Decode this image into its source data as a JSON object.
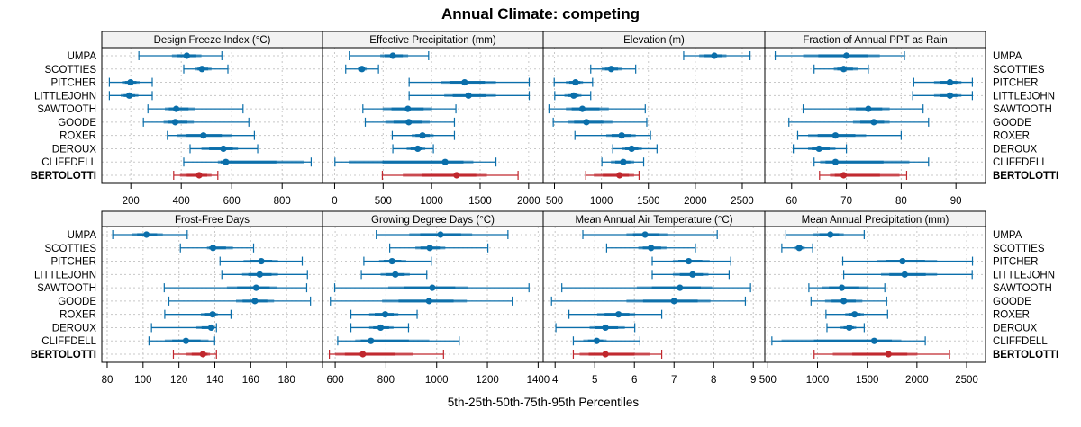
{
  "chart_data": {
    "type": "dotplot-intervals",
    "title": "Annual Climate: competing",
    "xlabel": "5th-25th-50th-75th-95th Percentiles",
    "percentiles": [
      "5th",
      "25th",
      "50th",
      "75th",
      "95th"
    ],
    "sites": [
      "UMPA",
      "SCOTTIES",
      "PITCHER",
      "LITTLEJOHN",
      "SAWTOOTH",
      "GOODE",
      "ROXER",
      "DEROUX",
      "CLIFFDELL",
      "BERTOLOTTI"
    ],
    "highlight_site": "BERTOLOTTI",
    "colors": {
      "competing": "#0a6eaa",
      "highlight": "#c0272d",
      "strip_bg": "#f2f2f2",
      "grid": "#c8c8c8"
    },
    "grid": true,
    "panels": [
      {
        "name": "Design Freeze Index (°C)",
        "xlim": [
          85,
          960
        ],
        "ticks": [
          200,
          400,
          600,
          800
        ],
        "values": {
          "UMPA": [
            232,
            363,
            422,
            480,
            561
          ],
          "SCOTTIES": [
            410,
            455,
            482,
            520,
            585
          ],
          "PITCHER": [
            115,
            165,
            199,
            235,
            285
          ],
          "LITTLEJOHN": [
            115,
            160,
            194,
            230,
            285
          ],
          "SAWTOOTH": [
            268,
            335,
            380,
            455,
            645
          ],
          "GOODE": [
            250,
            330,
            376,
            450,
            668
          ],
          "ROXER": [
            345,
            385,
            488,
            600,
            690
          ],
          "DEROUX": [
            435,
            480,
            567,
            625,
            703
          ],
          "CLIFFDELL": [
            410,
            545,
            577,
            885,
            915
          ],
          "BERTOLOTTI": [
            370,
            395,
            471,
            520,
            545
          ]
        }
      },
      {
        "name": "Effective Precipitation (mm)",
        "xlim": [
          -125,
          2150
        ],
        "ticks": [
          0,
          500,
          1000,
          1500,
          2000
        ],
        "values": {
          "UMPA": [
            151,
            470,
            600,
            758,
            969
          ],
          "SCOTTIES": [
            114,
            238,
            282,
            331,
            452
          ],
          "PITCHER": [
            768,
            1099,
            1340,
            1663,
            2006
          ],
          "LITTLEJOHN": [
            768,
            1130,
            1380,
            1663,
            2006
          ],
          "SAWTOOTH": [
            291,
            495,
            755,
            1005,
            1250
          ],
          "GOODE": [
            316,
            523,
            764,
            981,
            1235
          ],
          "ROXER": [
            594,
            795,
            906,
            1021,
            1235
          ],
          "DEROUX": [
            600,
            743,
            857,
            934,
            1018
          ],
          "CLIFFDELL": [
            3,
            145,
            1139,
            1430,
            1663
          ],
          "BERTOLOTTI": [
            492,
            703,
            1257,
            1570,
            1891
          ]
        }
      },
      {
        "name": "Elevation (m)",
        "xlim": [
          380,
          2740
        ],
        "ticks": [
          500,
          1000,
          1500,
          2000,
          2500
        ],
        "values": {
          "UMPA": [
            1876,
            2041,
            2203,
            2332,
            2583
          ],
          "SCOTTIES": [
            886,
            1002,
            1104,
            1216,
            1365
          ],
          "PITCHER": [
            497,
            622,
            724,
            804,
            906
          ],
          "LITTLEJOHN": [
            503,
            606,
            705,
            787,
            886
          ],
          "SAWTOOTH": [
            441,
            622,
            797,
            1078,
            1467
          ],
          "GOODE": [
            487,
            639,
            840,
            1117,
            1483
          ],
          "ROXER": [
            718,
            1051,
            1216,
            1365,
            1523
          ],
          "DEROUX": [
            1120,
            1216,
            1322,
            1431,
            1592
          ],
          "CLIFFDELL": [
            1005,
            1101,
            1233,
            1348,
            1450
          ],
          "BERTOLOTTI": [
            833,
            919,
            1193,
            1348,
            1401
          ]
        }
      },
      {
        "name": "Fraction of Annual PPT as Rain",
        "xlim": [
          55.1,
          95.4
        ],
        "ticks": [
          60,
          70,
          80,
          90
        ],
        "values": {
          "UMPA": [
            57.0,
            62.1,
            70.0,
            76.1,
            80.6
          ],
          "SCOTTIES": [
            64.1,
            67.7,
            69.5,
            72.1,
            74.0
          ],
          "PITCHER": [
            82.3,
            86.0,
            88.9,
            91.0,
            93.0
          ],
          "LITTLEJOHN": [
            82.1,
            86.0,
            88.9,
            91.0,
            93.0
          ],
          "SAWTOOTH": [
            62.1,
            70.5,
            74.0,
            77.9,
            84.0
          ],
          "GOODE": [
            59.5,
            71.2,
            75.0,
            77.9,
            85.0
          ],
          "ROXER": [
            61.1,
            63.0,
            68.0,
            73.6,
            80.0
          ],
          "DEROUX": [
            60.3,
            63.0,
            65.0,
            68.0,
            70.0
          ],
          "CLIFFDELL": [
            64.1,
            65.2,
            68.0,
            81.5,
            85.0
          ],
          "BERTOLOTTI": [
            65.1,
            67.0,
            69.5,
            79.7,
            81.0
          ]
        }
      },
      {
        "name": "Frost-Free Days",
        "xlim": [
          77,
          200
        ],
        "ticks": [
          80,
          100,
          120,
          140,
          160,
          180,
          200
        ],
        "tick_labels": [
          "80",
          "100",
          "120",
          "140",
          "160",
          "180",
          ""
        ],
        "values": {
          "UMPA": [
            83.1,
            93.9,
            101.9,
            111.0,
            124.6
          ],
          "SCOTTIES": [
            120.8,
            135.6,
            139.0,
            150.1,
            161.6
          ],
          "PITCHER": [
            142.9,
            156.0,
            165.9,
            175.2,
            188.7
          ],
          "LITTLEJOHN": [
            143.9,
            155.2,
            165.0,
            175.2,
            191.6
          ],
          "SAWTOOTH": [
            111.8,
            146.7,
            163.0,
            174.7,
            191.2
          ],
          "GOODE": [
            114.4,
            151.8,
            162.3,
            173.0,
            193.3
          ],
          "ROXER": [
            112.1,
            132.2,
            138.8,
            141.6,
            149.0
          ],
          "DEROUX": [
            104.7,
            129.7,
            138.0,
            139.9,
            140.9
          ],
          "CLIFFDELL": [
            103.3,
            112.1,
            123.9,
            136.5,
            139.9
          ],
          "BERTOLOTTI": [
            116.9,
            123.7,
            133.4,
            137.3,
            140.9
          ]
        }
      },
      {
        "name": "Growing Degree Days (°C)",
        "xlim": [
          550,
          1420
        ],
        "ticks": [
          600,
          800,
          1000,
          1200,
          1400
        ],
        "values": {
          "UMPA": [
            762,
            892,
            1015,
            1140,
            1281
          ],
          "SCOTTIES": [
            815,
            916,
            973,
            1034,
            1202
          ],
          "PITCHER": [
            713,
            773,
            824,
            880,
            979
          ],
          "LITTLEJOHN": [
            703,
            779,
            837,
            894,
            961
          ],
          "SAWTOOTH": [
            598,
            809,
            983,
            1122,
            1364
          ],
          "GOODE": [
            581,
            785,
            970,
            1119,
            1298
          ],
          "ROXER": [
            662,
            734,
            797,
            849,
            923
          ],
          "DEROUX": [
            662,
            734,
            779,
            830,
            889
          ],
          "CLIFFDELL": [
            610,
            679,
            741,
            971,
            1089
          ],
          "BERTOLOTTI": [
            577,
            600,
            709,
            906,
            1027
          ]
        }
      },
      {
        "name": "Mean Annual Air Temperature (°C)",
        "xlim": [
          3.7,
          9.29
        ],
        "ticks": [
          4,
          5,
          6,
          7,
          8,
          9
        ],
        "values": {
          "UMPA": [
            4.7,
            5.8,
            6.27,
            6.83,
            8.09
          ],
          "SCOTTIES": [
            5.3,
            6.1,
            6.42,
            6.81,
            7.54
          ],
          "PITCHER": [
            6.45,
            6.97,
            7.37,
            7.9,
            8.43
          ],
          "LITTLEJOHN": [
            6.45,
            6.97,
            7.47,
            7.87,
            8.39
          ],
          "SAWTOOTH": [
            4.17,
            6.06,
            7.15,
            7.96,
            8.93
          ],
          "GOODE": [
            3.91,
            5.8,
            7.0,
            7.92,
            8.8
          ],
          "ROXER": [
            4.35,
            5.06,
            5.6,
            6.02,
            6.69
          ],
          "DEROUX": [
            4.02,
            4.87,
            5.27,
            5.76,
            6.01
          ],
          "CLIFFDELL": [
            4.46,
            4.71,
            5.05,
            5.3,
            6.14
          ],
          "BERTOLOTTI": [
            4.46,
            4.62,
            5.27,
            6.4,
            6.69
          ]
        }
      },
      {
        "name": "Mean Annual Precipitation (mm)",
        "xlim": [
          470,
          2690
        ],
        "ticks": [
          500,
          1000,
          1500,
          2000,
          2500
        ],
        "values": {
          "UMPA": [
            682,
            960,
            1129,
            1264,
            1470
          ],
          "SCOTTIES": [
            641,
            763,
            816,
            872,
            951
          ],
          "PITCHER": [
            1254,
            1602,
            1855,
            2203,
            2559
          ],
          "LITTLEJOHN": [
            1264,
            1639,
            1877,
            2203,
            2556
          ],
          "SAWTOOTH": [
            913,
            1045,
            1245,
            1514,
            1677
          ],
          "GOODE": [
            935,
            1076,
            1264,
            1451,
            1696
          ],
          "ROXER": [
            1085,
            1279,
            1373,
            1467,
            1705
          ],
          "DEROUX": [
            1095,
            1232,
            1320,
            1389,
            1470
          ],
          "CLIFFDELL": [
            541,
            638,
            1570,
            1843,
            2084
          ],
          "BERTOLOTTI": [
            966,
            1154,
            1714,
            2005,
            2328
          ]
        }
      }
    ]
  }
}
